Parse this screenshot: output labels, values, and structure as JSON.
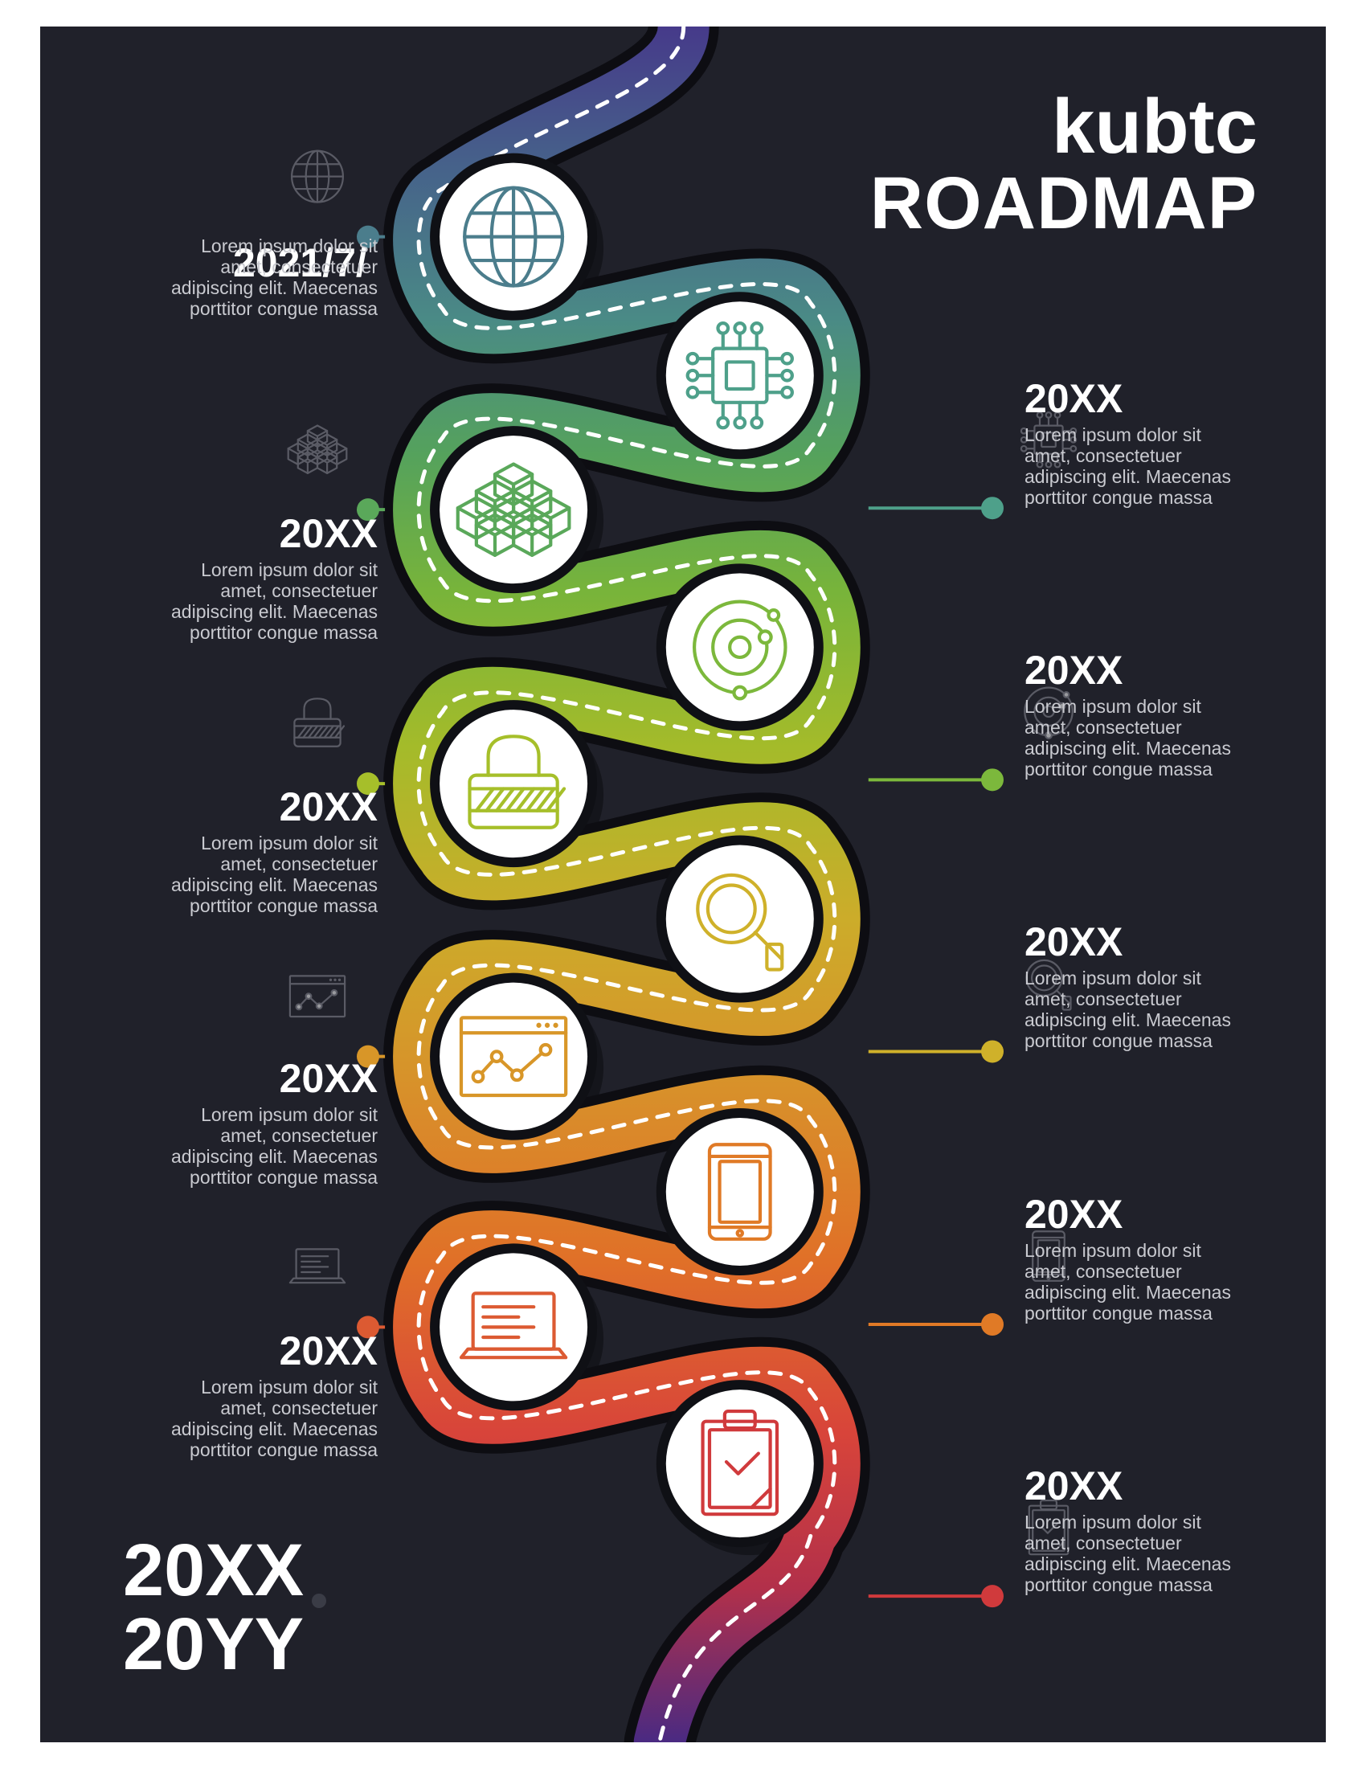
{
  "title": {
    "line1": "kubtc",
    "line2": "ROADMAP"
  },
  "milestones": [
    {
      "year": "2021/7/",
      "desc": [
        "Lorem ipsum dolor sit",
        "amet, consectetuer",
        "adipiscing elit. Maecenas",
        "porttitor congue massa"
      ],
      "icon": "globe-icon",
      "side": "left",
      "color": "#4b7d8c"
    },
    {
      "year": "20XX",
      "desc": [
        "Lorem ipsum dolor sit",
        "amet, consectetuer",
        "adipiscing elit. Maecenas",
        "porttitor congue massa"
      ],
      "icon": "chip-icon",
      "side": "right",
      "color": "#4ea08a"
    },
    {
      "year": "20XX",
      "desc": [
        "Lorem ipsum dolor sit",
        "amet, consectetuer",
        "adipiscing elit. Maecenas",
        "porttitor congue massa"
      ],
      "icon": "cubes-icon",
      "side": "left",
      "color": "#5aa85a"
    },
    {
      "year": "20XX",
      "desc": [
        "Lorem ipsum dolor sit",
        "amet, consectetuer",
        "adipiscing elit. Maecenas",
        "porttitor congue massa"
      ],
      "icon": "orbit-icon",
      "side": "right",
      "color": "#7cb83c"
    },
    {
      "year": "20XX",
      "desc": [
        "Lorem ipsum dolor sit",
        "amet, consectetuer",
        "adipiscing elit. Maecenas",
        "porttitor congue massa"
      ],
      "icon": "lock-icon",
      "side": "left",
      "color": "#a6bf2a"
    },
    {
      "year": "20XX",
      "desc": [
        "Lorem ipsum dolor sit",
        "amet, consectetuer",
        "adipiscing elit. Maecenas",
        "porttitor congue massa"
      ],
      "icon": "magnifier-icon",
      "side": "right",
      "color": "#cfb12a"
    },
    {
      "year": "20XX",
      "desc": [
        "Lorem ipsum dolor sit",
        "amet, consectetuer",
        "adipiscing elit. Maecenas",
        "porttitor congue massa"
      ],
      "icon": "analytics-window-icon",
      "side": "left",
      "color": "#d89628"
    },
    {
      "year": "20XX",
      "desc": [
        "Lorem ipsum dolor sit",
        "amet, consectetuer",
        "adipiscing elit. Maecenas",
        "porttitor congue massa"
      ],
      "icon": "tablet-icon",
      "side": "right",
      "color": "#e07a26"
    },
    {
      "year": "20XX",
      "desc": [
        "Lorem ipsum dolor sit",
        "amet, consectetuer",
        "adipiscing elit. Maecenas",
        "porttitor congue massa"
      ],
      "icon": "laptop-icon",
      "side": "left",
      "color": "#dc5a32"
    },
    {
      "year": "20XX",
      "desc": [
        "Lorem ipsum dolor sit",
        "amet, consectetuer",
        "adipiscing elit. Maecenas",
        "porttitor congue massa"
      ],
      "icon": "clipboard-check-icon",
      "side": "right",
      "color": "#d03a3c"
    }
  ],
  "footer": {
    "years": [
      "20XX",
      "20YY"
    ]
  },
  "colors": {
    "background": "#20212a",
    "road_top": "#4a3e8c",
    "road_bottom": "#5a2e7a"
  }
}
